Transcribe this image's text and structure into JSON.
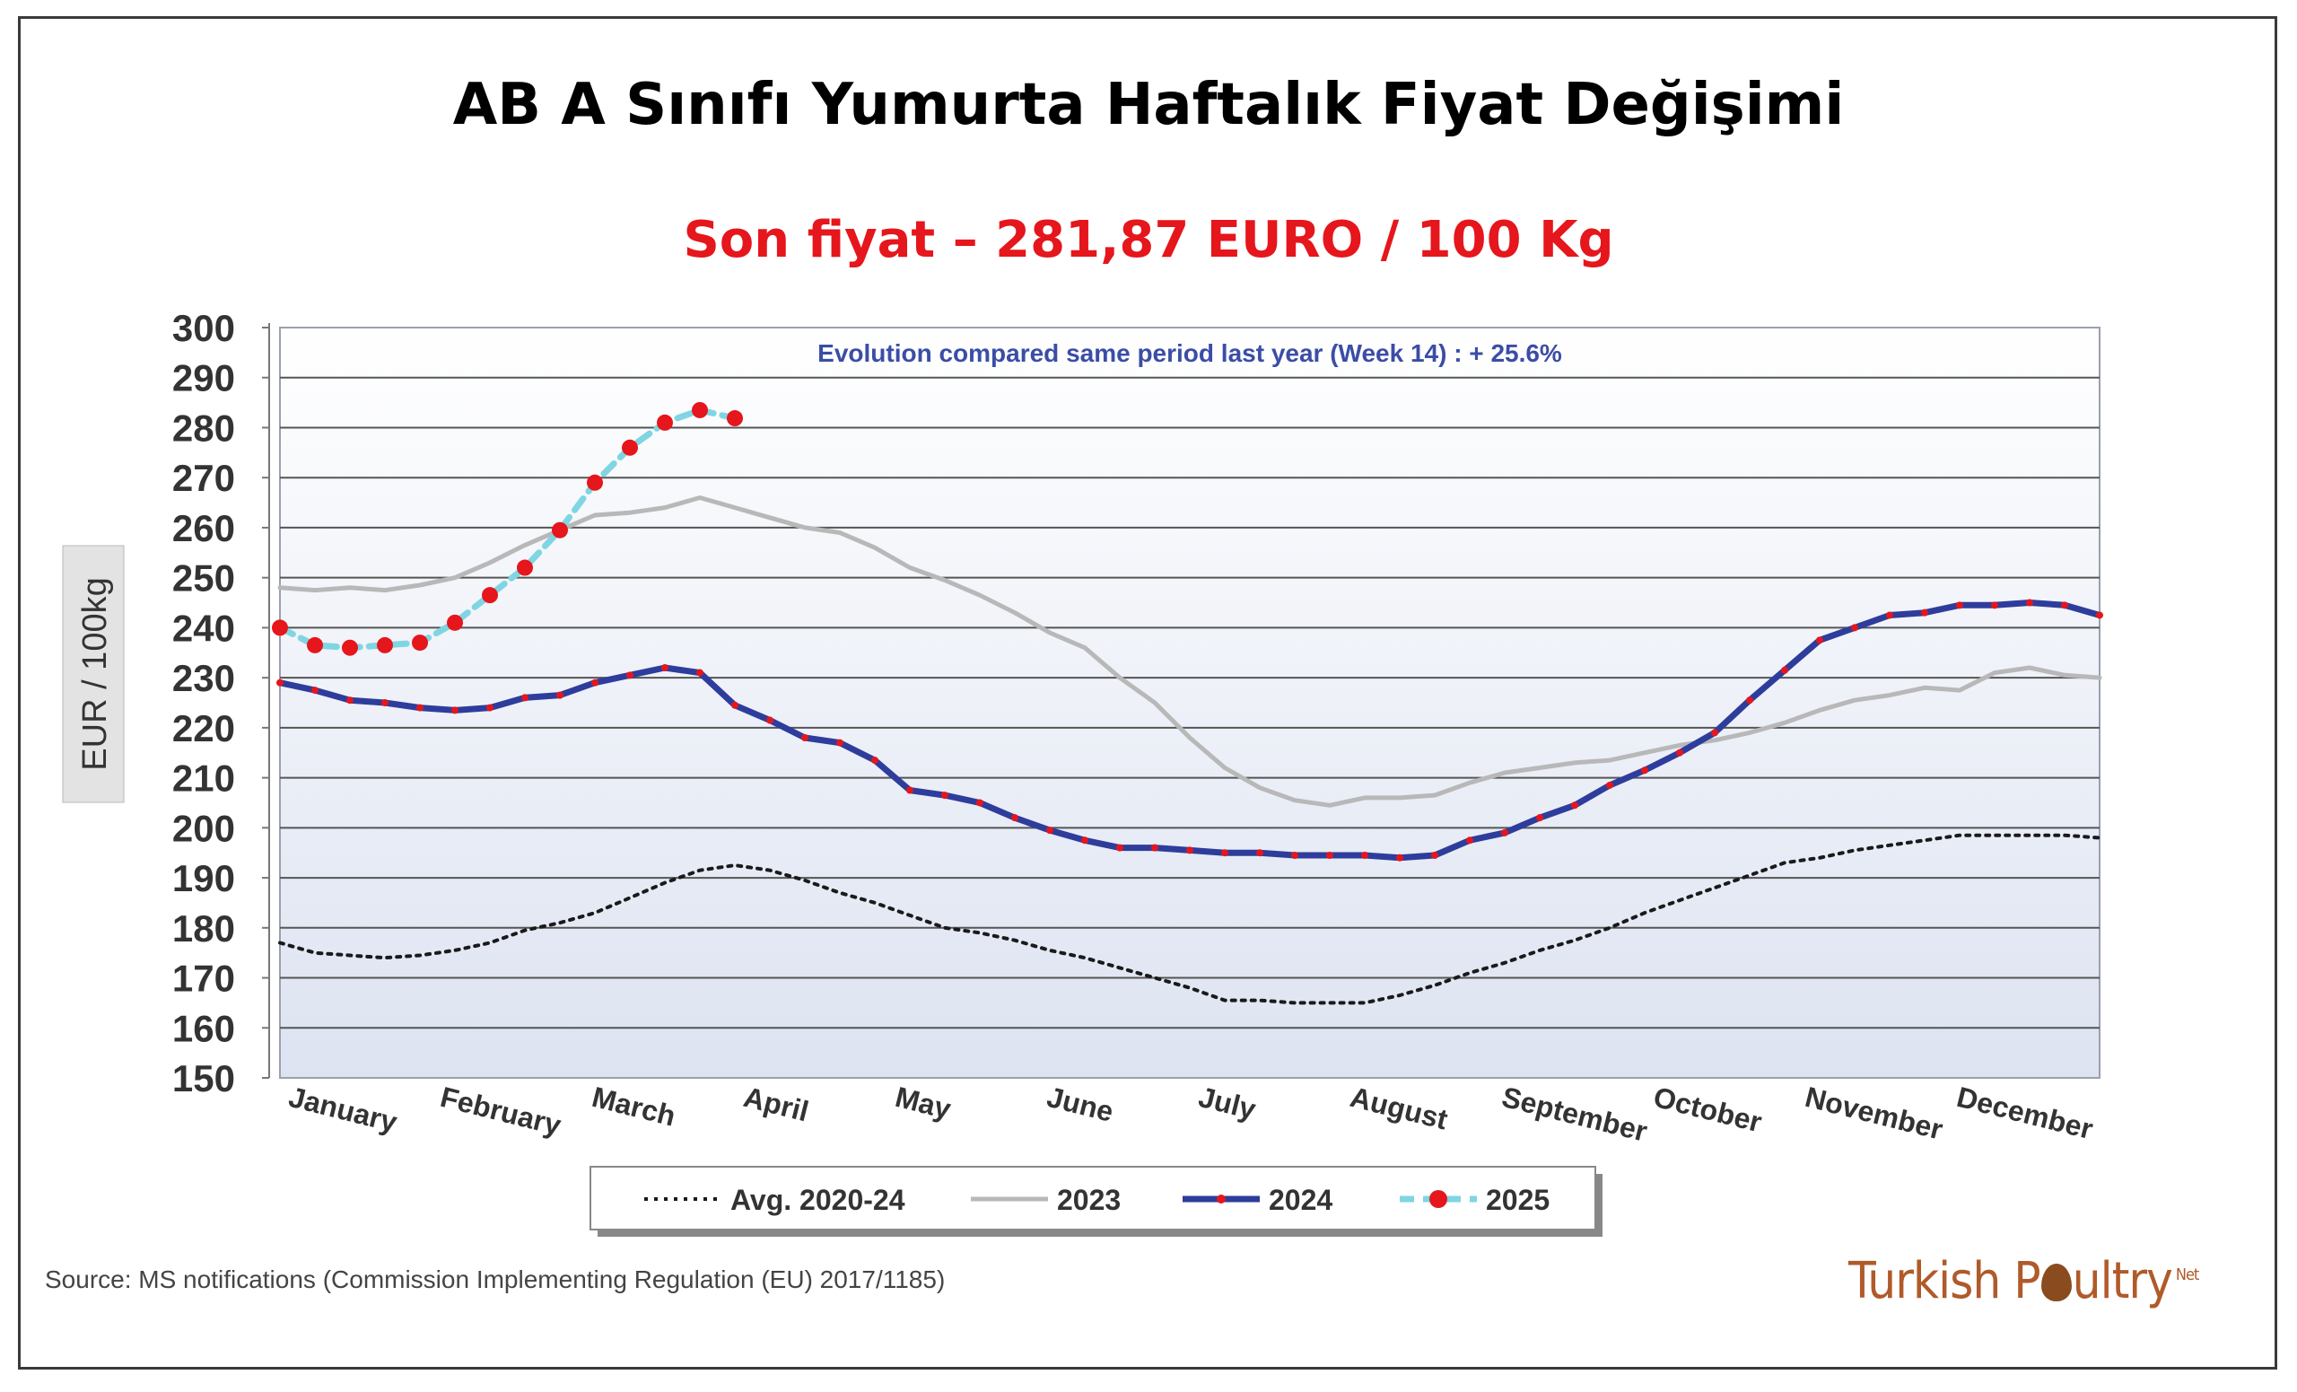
{
  "title": "AB A Sınıfı Yumurta Haftalık Fiyat Değişimi",
  "subtitle": "Son fiyat – 281,87 EURO / 100 Kg",
  "source": "Source: MS notifications (Commission Implementing Regulation (EU) 2017/1185)",
  "logo": {
    "part1": "Turkish P",
    "part2": "ultry",
    "suffix": "Net"
  },
  "colors": {
    "avg": "#1a1a1a",
    "y2023": "#b8b8b8",
    "y2024": "#2e3d9c",
    "y2024_marker": "#e5161c",
    "y2025": "#7fd6e2",
    "y2025_marker": "#e5161c",
    "subtitle": "#e5161c"
  },
  "chart_data": {
    "type": "line",
    "annotation": "Evolution compared same period last year (Week 14) : + 25.6%",
    "ylabel": "EUR / 100kg",
    "ylim": [
      150,
      300
    ],
    "yticks": [
      300,
      290,
      280,
      270,
      260,
      250,
      240,
      230,
      220,
      210,
      200,
      190,
      180,
      170,
      160,
      150
    ],
    "xlim": [
      1,
      53
    ],
    "months": [
      "January",
      "February",
      "March",
      "April",
      "May",
      "June",
      "July",
      "August",
      "September",
      "October",
      "November",
      "December"
    ],
    "grid": true,
    "legend": "bottom",
    "series": [
      {
        "name": "Avg. 2020-24",
        "weeks": [
          1,
          2,
          3,
          4,
          5,
          6,
          7,
          8,
          9,
          10,
          11,
          12,
          13,
          14,
          15,
          16,
          17,
          18,
          19,
          20,
          21,
          22,
          23,
          24,
          25,
          26,
          27,
          28,
          29,
          30,
          31,
          32,
          33,
          34,
          35,
          36,
          37,
          38,
          39,
          40,
          41,
          42,
          43,
          44,
          45,
          46,
          47,
          48,
          49,
          50,
          51,
          52,
          53
        ],
        "values": [
          177,
          175,
          174.5,
          174,
          174.5,
          175.5,
          177,
          179.5,
          181,
          183,
          186,
          189,
          191.5,
          192.5,
          191.5,
          189.5,
          187,
          185,
          182.5,
          180,
          179,
          177.5,
          175.5,
          174,
          172,
          170,
          168,
          165.5,
          165.5,
          165,
          165,
          165,
          166.5,
          168.5,
          171,
          173,
          175.5,
          177.5,
          180,
          183,
          185.5,
          188,
          190.5,
          193,
          194,
          195.5,
          196.5,
          197.5,
          198.5,
          198.5,
          198.5,
          198.5,
          198
        ]
      },
      {
        "name": "2023",
        "weeks": [
          1,
          2,
          3,
          4,
          5,
          6,
          7,
          8,
          9,
          10,
          11,
          12,
          13,
          14,
          15,
          16,
          17,
          18,
          19,
          20,
          21,
          22,
          23,
          24,
          25,
          26,
          27,
          28,
          29,
          30,
          31,
          32,
          33,
          34,
          35,
          36,
          37,
          38,
          39,
          40,
          41,
          42,
          43,
          44,
          45,
          46,
          47,
          48,
          49,
          50,
          51,
          52,
          53
        ],
        "values": [
          248,
          247.5,
          248,
          247.5,
          248.5,
          250,
          253,
          256.5,
          259.5,
          262.5,
          263,
          264,
          266,
          264,
          262,
          260,
          259,
          256,
          252,
          249.5,
          246.5,
          243,
          239,
          236,
          230,
          225,
          218,
          212,
          208,
          205.5,
          204.5,
          206,
          206,
          206.5,
          209,
          211,
          212,
          213,
          213.5,
          215,
          216.5,
          217.5,
          219,
          221,
          223.5,
          225.5,
          226.5,
          228,
          227.5,
          231,
          232,
          230.5,
          230
        ]
      },
      {
        "name": "2024",
        "weeks": [
          1,
          2,
          3,
          4,
          5,
          6,
          7,
          8,
          9,
          10,
          11,
          12,
          13,
          14,
          15,
          16,
          17,
          18,
          19,
          20,
          21,
          22,
          23,
          24,
          25,
          26,
          27,
          28,
          29,
          30,
          31,
          32,
          33,
          34,
          35,
          36,
          37,
          38,
          39,
          40,
          41,
          42,
          43,
          44,
          45,
          46,
          47,
          48,
          49,
          50,
          51,
          52,
          53
        ],
        "values": [
          229,
          227.5,
          225.5,
          225,
          224,
          223.5,
          224,
          226,
          226.5,
          229,
          230.5,
          232,
          231,
          224.5,
          221.5,
          218,
          217,
          213.5,
          207.5,
          206.5,
          205,
          202,
          199.5,
          197.5,
          196,
          196,
          195.5,
          195,
          195,
          194.5,
          194.5,
          194.5,
          194,
          194.5,
          197.5,
          199,
          202,
          204.5,
          208.5,
          211.5,
          215,
          219,
          225.5,
          231.5,
          237.5,
          240,
          242.5,
          243,
          244.5,
          244.5,
          245,
          244.5,
          242.5
        ]
      },
      {
        "name": "2025",
        "weeks": [
          1,
          2,
          3,
          4,
          5,
          6,
          7,
          8,
          9,
          10,
          11,
          12,
          13,
          14
        ],
        "values": [
          240,
          236.5,
          236,
          236.5,
          237,
          241,
          246.5,
          252,
          259.5,
          269,
          276,
          281,
          283.5,
          281.87
        ]
      }
    ]
  }
}
